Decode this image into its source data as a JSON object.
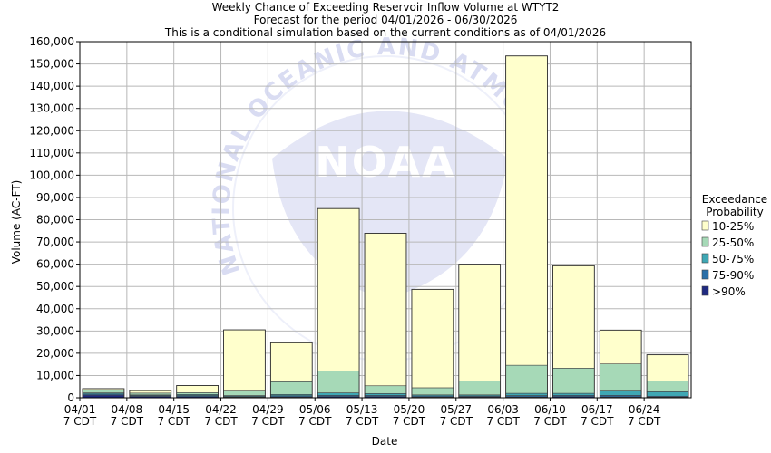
{
  "chart_data": {
    "type": "bar",
    "stacked": true,
    "title_lines": [
      "Weekly Chance of Exceeding Reservoir Inflow Volume at WTYT2",
      "Forecast for the period 04/01/2026 - 06/30/2026",
      "This is a conditional simulation based on the current conditions as of 04/01/2026"
    ],
    "xlabel": "Date",
    "ylabel": "Volume (AC-FT)",
    "ylim": [
      0,
      160000
    ],
    "yticks": [
      0,
      10000,
      20000,
      30000,
      40000,
      50000,
      60000,
      70000,
      80000,
      90000,
      100000,
      110000,
      120000,
      130000,
      140000,
      150000,
      160000
    ],
    "ytick_labels": [
      "0",
      "10,000",
      "20,000",
      "30,000",
      "40,000",
      "50,000",
      "60,000",
      "70,000",
      "80,000",
      "90,000",
      "100,000",
      "110,000",
      "120,000",
      "130,000",
      "140,000",
      "150,000",
      "160,000"
    ],
    "grid": true,
    "legend_position": "right",
    "legend_title": [
      "Exceedance",
      "Probability"
    ],
    "categories": [
      "04/01",
      "04/08",
      "04/15",
      "04/22",
      "04/29",
      "05/06",
      "05/13",
      "05/20",
      "05/27",
      "06/03",
      "06/10",
      "06/17",
      "06/24"
    ],
    "x_tick_labels": [
      [
        "04/01",
        "7 CDT"
      ],
      [
        "04/08",
        "7 CDT"
      ],
      [
        "04/15",
        "7 CDT"
      ],
      [
        "04/22",
        "7 CDT"
      ],
      [
        "04/29",
        "7 CDT"
      ],
      [
        "05/06",
        "7 CDT"
      ],
      [
        "05/13",
        "7 CDT"
      ],
      [
        "05/20",
        "7 CDT"
      ],
      [
        "05/27",
        "7 CDT"
      ],
      [
        "06/03",
        "7 CDT"
      ],
      [
        "06/10",
        "7 CDT"
      ],
      [
        "06/17",
        "7 CDT"
      ],
      [
        "06/24",
        "7 CDT"
      ]
    ],
    "series": [
      {
        "name": ">90%",
        "color": "#1f2a80",
        "values": [
          1200,
          600,
          500,
          300,
          400,
          500,
          500,
          300,
          400,
          400,
          500,
          400,
          300
        ]
      },
      {
        "name": "75-90%",
        "color": "#2a6fa8",
        "values": [
          500,
          400,
          500,
          300,
          500,
          600,
          600,
          500,
          400,
          600,
          600,
          700,
          400
        ]
      },
      {
        "name": "50-75%",
        "color": "#3fa7b4",
        "values": [
          500,
          300,
          500,
          400,
          600,
          1100,
          800,
          500,
          500,
          1000,
          900,
          1900,
          2000
        ]
      },
      {
        "name": "25-50%",
        "color": "#a6d9b7",
        "values": [
          1200,
          800,
          800,
          2000,
          5700,
          9800,
          3500,
          3200,
          6200,
          12600,
          11300,
          12200,
          4800
        ]
      },
      {
        "name": "10-25%",
        "color": "#ffffcc",
        "values": [
          700,
          1100,
          3200,
          27500,
          17500,
          73000,
          68500,
          44200,
          52500,
          139000,
          46000,
          15200,
          11800
        ]
      }
    ],
    "legend_order": [
      "10-25%",
      "25-50%",
      "50-75%",
      "75-90%",
      ">90%"
    ],
    "watermark": {
      "arc_text": "NATIONAL OCEANIC AND ATMOSPHERIC ADMINISTRATION",
      "center_text": "NOAA"
    }
  }
}
